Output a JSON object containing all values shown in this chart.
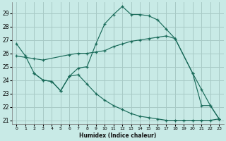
{
  "xlabel": "Humidex (Indice chaleur)",
  "xlim": [
    -0.5,
    23.5
  ],
  "ylim": [
    20.7,
    29.8
  ],
  "yticks": [
    21,
    22,
    23,
    24,
    25,
    26,
    27,
    28,
    29
  ],
  "xticks": [
    0,
    1,
    2,
    3,
    4,
    5,
    6,
    7,
    8,
    9,
    10,
    11,
    12,
    13,
    14,
    15,
    16,
    17,
    18,
    19,
    20,
    21,
    22,
    23
  ],
  "bg_color": "#c8eae6",
  "grid_color": "#a8cac6",
  "line_color": "#1a6b5a",
  "curve1_x": [
    0,
    1,
    2,
    3,
    4,
    5,
    6,
    7,
    8,
    9,
    10,
    11,
    12,
    13,
    14,
    15,
    16,
    17,
    18,
    20,
    21,
    22,
    23
  ],
  "curve1_y": [
    26.7,
    25.8,
    24.5,
    24.0,
    23.9,
    23.2,
    24.3,
    24.9,
    25.0,
    26.7,
    28.2,
    28.9,
    29.5,
    28.9,
    28.9,
    28.8,
    28.5,
    27.8,
    27.1,
    24.5,
    22.1,
    22.1,
    21.1
  ],
  "curve2_x": [
    0,
    1,
    2,
    3,
    6,
    7,
    8,
    9,
    10,
    11,
    12,
    13,
    14,
    15,
    16,
    17,
    18,
    20,
    21,
    22,
    23
  ],
  "curve2_y": [
    25.8,
    25.7,
    25.6,
    25.5,
    25.9,
    26.0,
    26.0,
    26.1,
    26.2,
    26.5,
    26.7,
    26.9,
    27.0,
    27.1,
    27.2,
    27.3,
    27.1,
    24.5,
    23.3,
    22.1,
    21.1
  ],
  "curve3_x": [
    2,
    3,
    4,
    5,
    6,
    7,
    8,
    9,
    10,
    11,
    12,
    13,
    14,
    15,
    16,
    17,
    18,
    19,
    20,
    21,
    22,
    23
  ],
  "curve3_y": [
    24.5,
    24.0,
    23.9,
    23.2,
    24.3,
    24.4,
    23.7,
    23.0,
    22.5,
    22.1,
    21.8,
    21.5,
    21.3,
    21.2,
    21.1,
    21.0,
    21.0,
    21.0,
    21.0,
    21.0,
    21.0,
    21.1
  ]
}
